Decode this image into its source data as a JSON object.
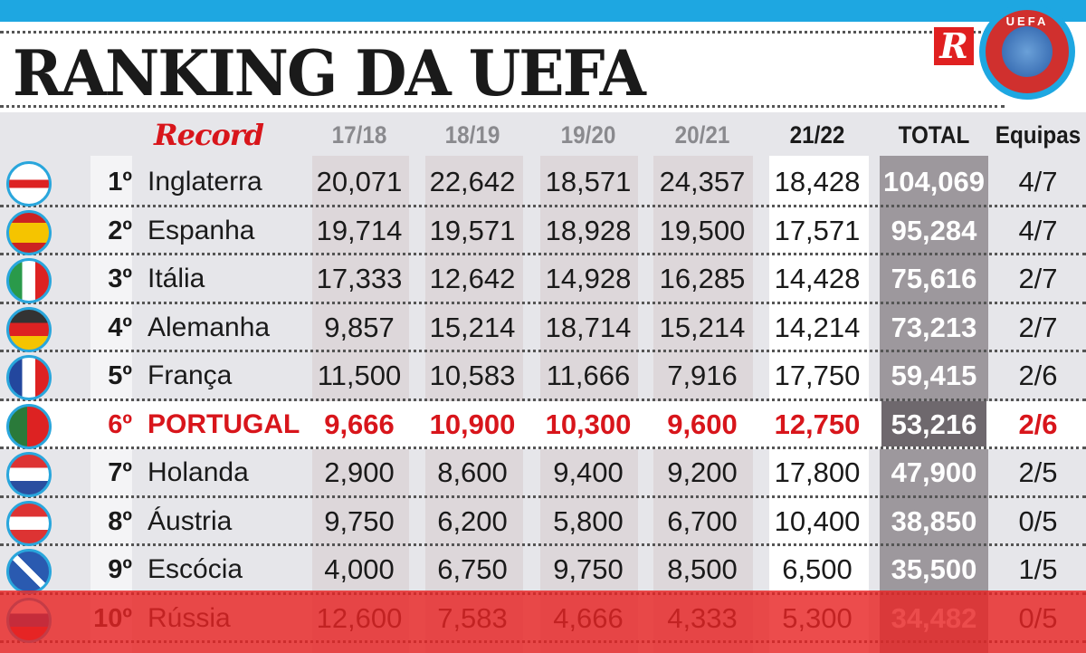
{
  "title": "RANKING DA UEFA",
  "logos": {
    "r": "R",
    "uefa": "UEFA",
    "record": "Record"
  },
  "colors": {
    "accent_blue": "#1ea7e1",
    "highlight_red": "#d8151b"
  },
  "headers": [
    "17/18",
    "18/19",
    "19/20",
    "20/21",
    "21/22",
    "TOTAL",
    "Equipas"
  ],
  "rows": [
    {
      "rank": "1º",
      "country": "Inglaterra",
      "flag": "england-flag-icon",
      "values": [
        "20,071",
        "22,642",
        "18,571",
        "24,357",
        "18,428"
      ],
      "total": "104,069",
      "teams": "4/7"
    },
    {
      "rank": "2º",
      "country": "Espanha",
      "flag": "spain-flag-icon",
      "values": [
        "19,714",
        "19,571",
        "18,928",
        "19,500",
        "17,571"
      ],
      "total": "95,284",
      "teams": "4/7"
    },
    {
      "rank": "3º",
      "country": "Itália",
      "flag": "italy-flag-icon",
      "values": [
        "17,333",
        "12,642",
        "14,928",
        "16,285",
        "14,428"
      ],
      "total": "75,616",
      "teams": "2/7"
    },
    {
      "rank": "4º",
      "country": "Alemanha",
      "flag": "germany-flag-icon",
      "values": [
        "9,857",
        "15,214",
        "18,714",
        "15,214",
        "14,214"
      ],
      "total": "73,213",
      "teams": "2/7"
    },
    {
      "rank": "5º",
      "country": "França",
      "flag": "france-flag-icon",
      "values": [
        "11,500",
        "10,583",
        "11,666",
        "7,916",
        "17,750"
      ],
      "total": "59,415",
      "teams": "2/6"
    },
    {
      "rank": "6º",
      "country": "PORTUGAL",
      "flag": "portugal-flag-icon",
      "highlight": true,
      "values": [
        "9,666",
        "10,900",
        "10,300",
        "9,600",
        "12,750"
      ],
      "total": "53,216",
      "teams": "2/6"
    },
    {
      "rank": "7º",
      "country": "Holanda",
      "flag": "netherlands-flag-icon",
      "values": [
        "2,900",
        "8,600",
        "9,400",
        "9,200",
        "17,800"
      ],
      "total": "47,900",
      "teams": "2/5"
    },
    {
      "rank": "8º",
      "country": "Áustria",
      "flag": "austria-flag-icon",
      "values": [
        "9,750",
        "6,200",
        "5,800",
        "6,700",
        "10,400"
      ],
      "total": "38,850",
      "teams": "0/5"
    },
    {
      "rank": "9º",
      "country": "Escócia",
      "flag": "scotland-flag-icon",
      "values": [
        "4,000",
        "6,750",
        "9,750",
        "8,500",
        "6,500"
      ],
      "total": "35,500",
      "teams": "1/5"
    },
    {
      "rank": "10º",
      "country": "Rússia",
      "flag": "russia-flag-icon",
      "values": [
        "12,600",
        "7,583",
        "4,666",
        "4,333",
        "5,300"
      ],
      "total": "34,482",
      "teams": "0/5"
    }
  ]
}
